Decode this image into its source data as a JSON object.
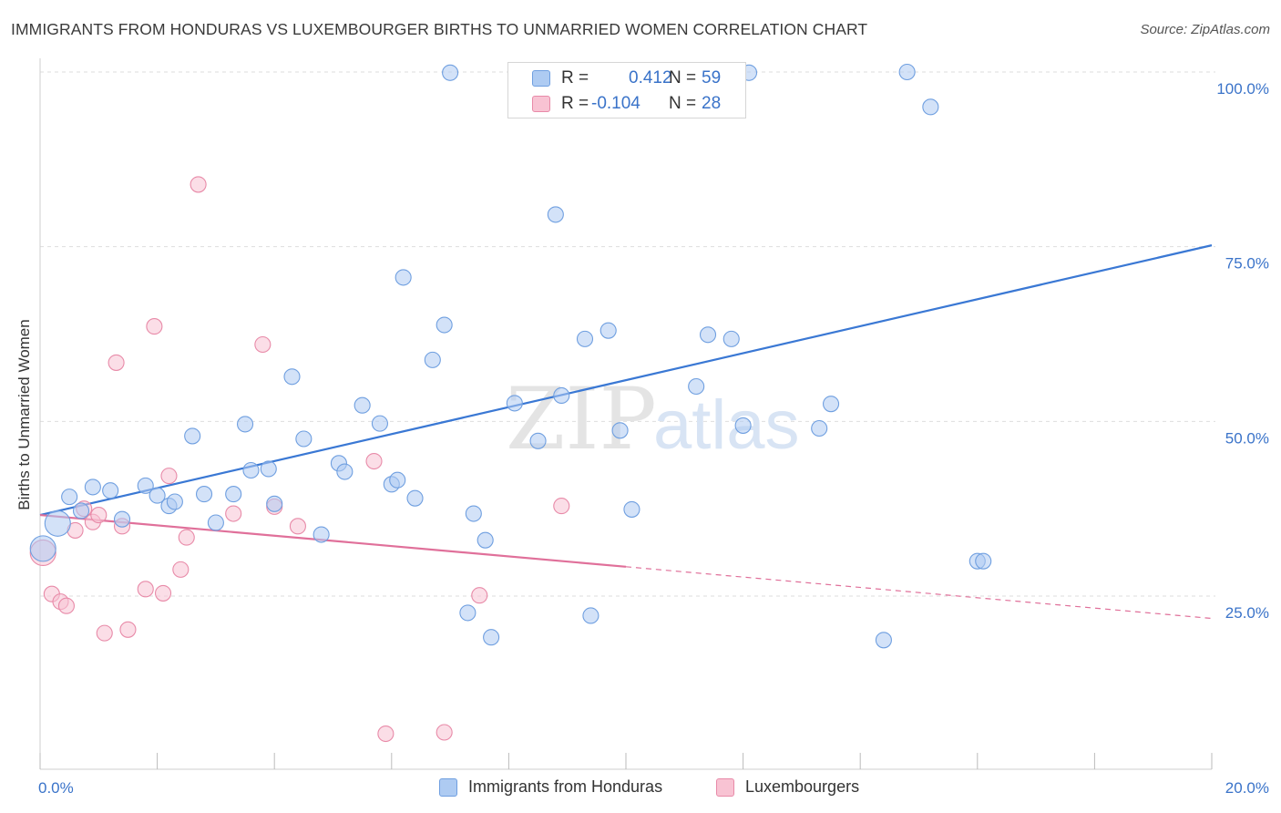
{
  "header": {
    "title": "IMMIGRANTS FROM HONDURAS VS LUXEMBOURGER BIRTHS TO UNMARRIED WOMEN CORRELATION CHART",
    "source": "Source: ZipAtlas.com"
  },
  "watermark": {
    "zip": "ZIP",
    "atlas": "atlas"
  },
  "stats_legend": {
    "r_label": "R =",
    "n_label": "N =",
    "rows": [
      {
        "r": "0.412",
        "n": "59",
        "color": "#aecbf2",
        "border": "#6f9fe0"
      },
      {
        "r": "-0.104",
        "n": "28",
        "color": "#f8c3d3",
        "border": "#e88aa8"
      }
    ]
  },
  "colors": {
    "blue_fill": "#aecbf2",
    "blue_stroke": "#6f9fe0",
    "blue_line": "#3a78d4",
    "pink_fill": "#f8c3d3",
    "pink_stroke": "#e88aa8",
    "pink_line": "#e0709a",
    "axis_label": "#3a73c9",
    "grid": "#dedede"
  },
  "chart_data": {
    "type": "scatter",
    "title": "IMMIGRANTS FROM HONDURAS VS LUXEMBOURGER BIRTHS TO UNMARRIED WOMEN CORRELATION CHART",
    "xlabel": "",
    "ylabel": "Births to Unmarried Women",
    "xlim": [
      0,
      20
    ],
    "ylim": [
      0,
      102
    ],
    "x_tick_labels": [
      "0.0%",
      "20.0%"
    ],
    "y_tick_labels": [
      "25.0%",
      "50.0%",
      "75.0%",
      "100.0%"
    ],
    "y_ticks": [
      25,
      50,
      75,
      100
    ],
    "grid": true,
    "series": [
      {
        "name": "Immigrants from Honduras",
        "color": "#aecbf2",
        "trend": {
          "x": [
            0,
            20
          ],
          "y": [
            36.6,
            75.2
          ],
          "dashed_from": null
        },
        "points": [
          [
            0.05,
            31.8,
            "large"
          ],
          [
            0.3,
            35.4,
            "large"
          ],
          [
            0.5,
            39.2
          ],
          [
            0.7,
            37.2
          ],
          [
            0.9,
            40.6
          ],
          [
            1.2,
            40.1
          ],
          [
            1.4,
            36.0
          ],
          [
            1.8,
            40.8
          ],
          [
            2.0,
            39.4
          ],
          [
            2.2,
            37.9
          ],
          [
            2.3,
            38.5
          ],
          [
            2.6,
            47.9
          ],
          [
            2.8,
            39.6
          ],
          [
            3.0,
            35.5
          ],
          [
            3.3,
            39.6
          ],
          [
            3.5,
            49.6
          ],
          [
            3.6,
            43.0
          ],
          [
            3.9,
            43.2
          ],
          [
            4.0,
            38.2
          ],
          [
            4.3,
            56.4
          ],
          [
            4.5,
            47.5
          ],
          [
            4.8,
            33.8
          ],
          [
            5.1,
            44.0
          ],
          [
            5.2,
            42.8
          ],
          [
            5.5,
            52.3
          ],
          [
            5.8,
            49.7
          ],
          [
            6.0,
            41.0
          ],
          [
            6.1,
            41.6
          ],
          [
            6.2,
            70.6
          ],
          [
            6.4,
            39.0
          ],
          [
            6.7,
            58.8
          ],
          [
            6.9,
            63.8
          ],
          [
            7.0,
            99.9
          ],
          [
            7.3,
            22.6
          ],
          [
            7.4,
            36.8
          ],
          [
            7.6,
            33.0
          ],
          [
            7.7,
            19.1
          ],
          [
            8.1,
            52.6
          ],
          [
            8.5,
            47.2
          ],
          [
            8.8,
            79.6
          ],
          [
            8.9,
            53.7
          ],
          [
            9.3,
            61.8
          ],
          [
            9.4,
            22.2
          ],
          [
            9.7,
            63.0
          ],
          [
            9.9,
            48.7
          ],
          [
            10.1,
            37.4
          ],
          [
            10.8,
            99.9
          ],
          [
            11.2,
            55.0
          ],
          [
            11.4,
            62.4
          ],
          [
            11.8,
            61.8
          ],
          [
            12.0,
            49.4
          ],
          [
            12.1,
            99.9
          ],
          [
            13.3,
            49.0
          ],
          [
            13.5,
            52.5
          ],
          [
            14.4,
            18.7
          ],
          [
            14.8,
            100.0
          ],
          [
            15.2,
            95.0
          ],
          [
            16.0,
            30.0
          ],
          [
            16.1,
            30.0
          ]
        ]
      },
      {
        "name": "Luxembourgers",
        "color": "#f8c3d3",
        "trend": {
          "x": [
            0,
            20
          ],
          "y": [
            36.6,
            21.8
          ],
          "dashed_from": 10.0
        },
        "points": [
          [
            0.05,
            31.2,
            "large"
          ],
          [
            0.2,
            25.3
          ],
          [
            0.35,
            24.2
          ],
          [
            0.45,
            23.6
          ],
          [
            0.6,
            34.4
          ],
          [
            0.75,
            37.5
          ],
          [
            0.9,
            35.6
          ],
          [
            1.0,
            36.6
          ],
          [
            1.1,
            19.7
          ],
          [
            1.3,
            58.4
          ],
          [
            1.4,
            35.0
          ],
          [
            1.5,
            20.2
          ],
          [
            1.8,
            26.0
          ],
          [
            1.95,
            63.6
          ],
          [
            2.1,
            25.4
          ],
          [
            2.2,
            42.2
          ],
          [
            2.4,
            28.8
          ],
          [
            2.5,
            33.4
          ],
          [
            2.7,
            83.9
          ],
          [
            3.3,
            36.8
          ],
          [
            3.8,
            61.0
          ],
          [
            4.0,
            37.8
          ],
          [
            4.4,
            35.0
          ],
          [
            5.7,
            44.3
          ],
          [
            5.9,
            5.3
          ],
          [
            6.9,
            5.5
          ],
          [
            7.5,
            25.1
          ],
          [
            8.9,
            37.9
          ]
        ]
      }
    ]
  },
  "bottom_legend": [
    {
      "label": "Immigrants from Honduras",
      "color": "#aecbf2",
      "border": "#6f9fe0"
    },
    {
      "label": "Luxembourgers",
      "color": "#f8c3d3",
      "border": "#e88aa8"
    }
  ]
}
